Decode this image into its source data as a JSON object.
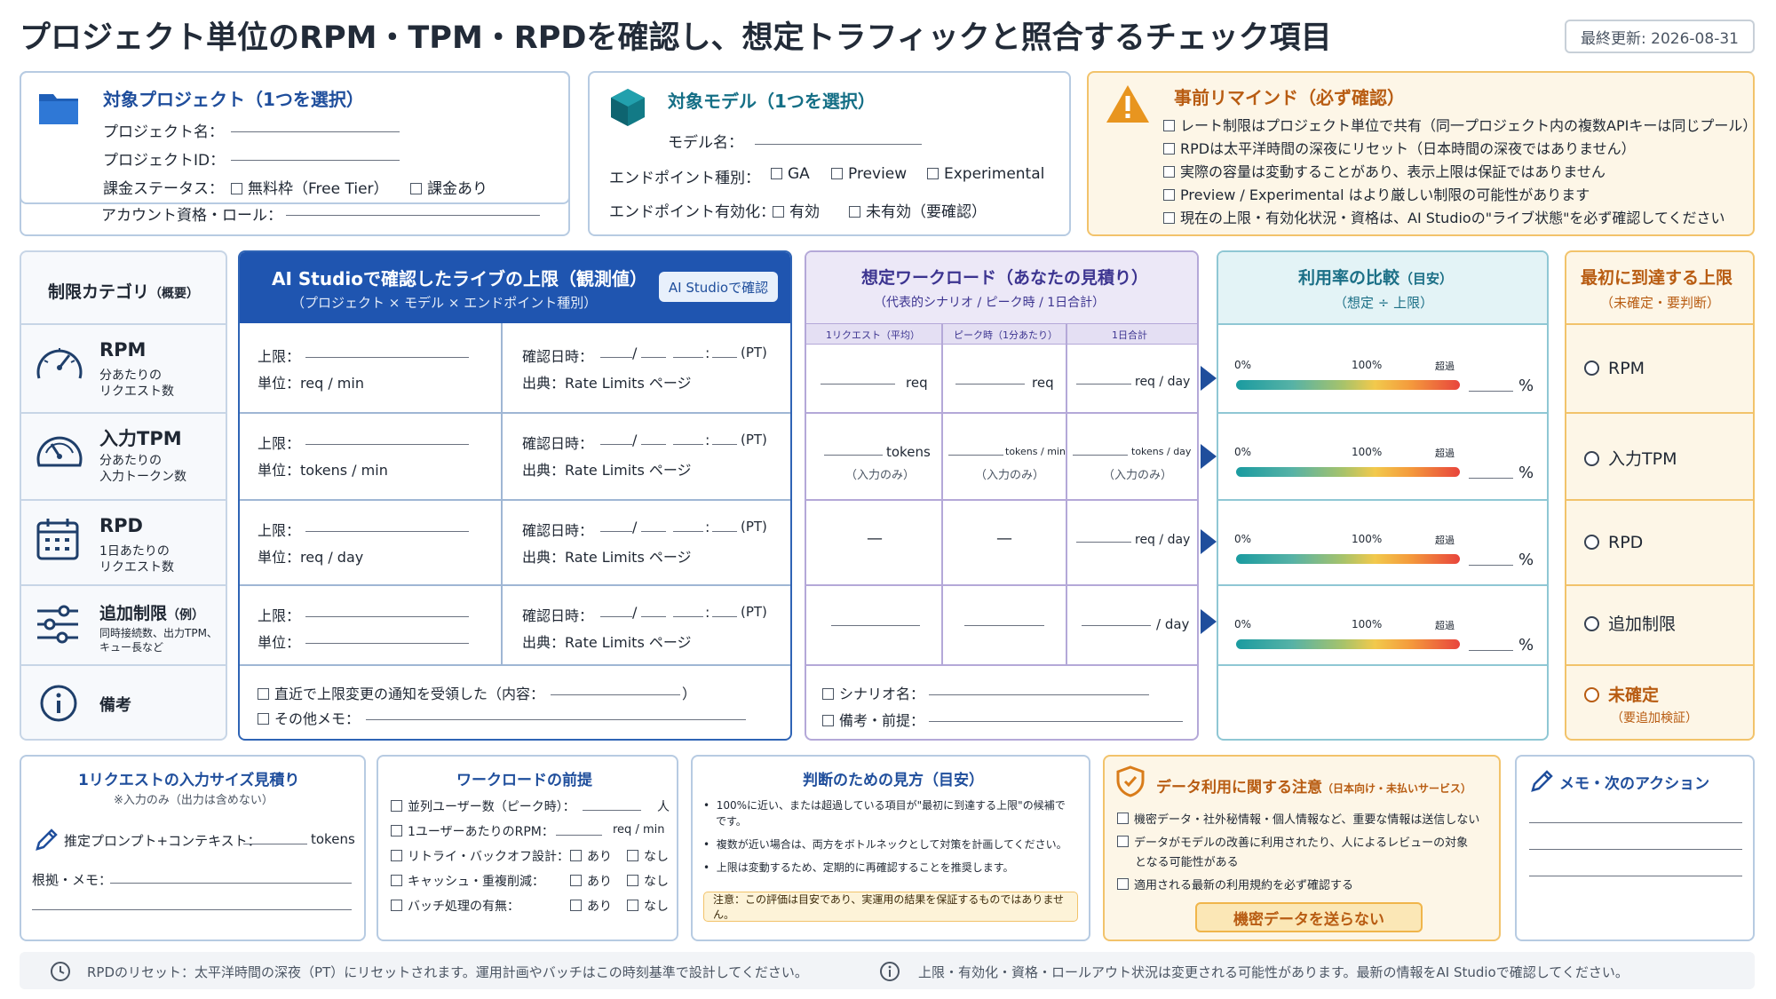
{
  "title": "プロジェクト単位のRPM・TPM・RPDを確認し、想定トラフィックと照合するチェック項目",
  "last_updated": "最終更新: 2026-08-31",
  "project": {
    "heading": "対象プロジェクト（1つを選択）",
    "name": "プロジェクト名：",
    "id": "プロジェクトID：",
    "billing": "課金ステータス：",
    "free": "無料枠（Free Tier）",
    "paid": "課金あり",
    "account": "アカウント資格・ロール："
  },
  "model": {
    "heading": "対象モデル（1つを選択）",
    "name": "モデル名：",
    "endpoint_type": "エンドポイント種別：",
    "ga": "GA",
    "preview": "Preview",
    "experimental": "Experimental",
    "enabled": "エンドポイント有効化：",
    "on": "有効",
    "off": "未有効（要確認）"
  },
  "reminder": {
    "heading": "事前リマインド（必ず確認）",
    "items": [
      "レート制限はプロジェクト単位で共有（同一プロジェクト内の複数APIキーは同じプール）",
      "RPDは太平洋時間の深夜にリセット（日本時間の深夜ではありません）",
      "実際の容量は変動することがあり、表示上限は保証ではありません",
      "Preview / Experimental はより厳しい制限の可能性があります",
      "現在の上限・有効化状況・資格は、AI Studioの\"ライブ状態\"を必ず確認してください"
    ]
  },
  "cat": {
    "header": "制限カテゴリ",
    "header_sub": "（概要）",
    "rows": [
      {
        "name": "RPM",
        "desc1": "分あたりの",
        "desc2": "リクエスト数"
      },
      {
        "name": "入力TPM",
        "desc1": "分あたりの",
        "desc2": "入力トークン数"
      },
      {
        "name": "RPD",
        "desc1": "1日あたりの",
        "desc2": "リクエスト数"
      },
      {
        "name": "追加制限",
        "suffix": "（例）",
        "desc1": "同時接続数、出力TPM、",
        "desc2": "キュー長など"
      }
    ],
    "note": "備考"
  },
  "live": {
    "header": "AI Studioで確認したライブの上限（観測値）",
    "header_sub": "（プロジェクト × モデル × エンドポイント種別）",
    "button": "AI Studioで確認",
    "limit": "上限：",
    "unit": "単位：",
    "units": [
      "req / min",
      "tokens / min",
      "req / day",
      ""
    ],
    "checked": "確認日時：",
    "pt": "(PT)",
    "source": "出典：Rate Limits ページ",
    "note1": "直近で上限変更の通知を受領した（内容：",
    "note1_end": "）",
    "note2": "その他メモ："
  },
  "workload": {
    "header": "想定ワークロード（あなたの見積り）",
    "header_sub": "（代表的シナリオ / ピーク時 / 1日合計）",
    "cols": [
      "1リクエスト（平均）",
      "ピーク時（1分あたり）",
      "1日合計"
    ],
    "r1": [
      "req",
      "req",
      "req / day"
    ],
    "r2": [
      "tokens",
      "tokens / min",
      "tokens / day"
    ],
    "input_only": "（入力のみ）",
    "dash": "—",
    "r3": "req / day",
    "r4": "/ day",
    "scenario": "シナリオ名：",
    "notes": "備考・前提："
  },
  "util": {
    "header": "利用率の比較",
    "header_suffix": "（目安）",
    "header_sub": "（想定 ÷ 上限）",
    "p0": "0%",
    "p100": "100%",
    "over": "超過",
    "pct": "%"
  },
  "first": {
    "header": "最初に到達する上限",
    "header_sub": "（未確定・要判断）",
    "options": [
      "RPM",
      "入力TPM",
      "RPD",
      "追加制限"
    ],
    "undecided": "未確定",
    "undecided_sub": "（要追加検証）"
  },
  "input_size": {
    "heading": "1リクエストの入力サイズ見積り",
    "sub": "※入力のみ（出力は含めない）",
    "prompt": "推定プロンプト+コンテキスト：",
    "tokens": "tokens",
    "basis": "根拠・メモ："
  },
  "premise": {
    "heading": "ワークロードの前提",
    "users": "並列ユーザー数（ピーク時）：",
    "people": "人",
    "rpm": "1ユーザーあたりのRPM：",
    "rpm_unit": "req / min",
    "retry": "リトライ・バックオフ設計：",
    "cache": "キャッシュ・重複削減：",
    "batch": "バッチ処理の有無：",
    "yes": "あり",
    "no": "なし"
  },
  "judge": {
    "heading": "判断のための見方（目安）",
    "b1a": "100%に近い、または超過している項目が\"最初に到達する上限\"の候補で",
    "b1b": "です。",
    "b2": "複数が近い場合は、両方をボトルネックとして対策を計画してください。",
    "b3": "上限は変動するため、定期的に再確認することを推奨します。",
    "caution": "注意：この評価は目安であり、実運用の結果を保証するものではありません。"
  },
  "data": {
    "heading": "データ利用に関する注意",
    "heading_sub": "（日本向け・未払いサービス）",
    "i1": "機密データ・社外秘情報・個人情報など、重要な情報は送信しない",
    "i2a": "データがモデルの改善に利用されたり、人によるレビューの対象",
    "i2b": "となる可能性がある",
    "i3": "適用される最新の利用規約を必ず確認する",
    "button": "機密データを送らない"
  },
  "memo": {
    "heading": "メモ・次のアクション"
  },
  "footer": {
    "left": "RPDのリセット：太平洋時間の深夜（PT）にリセットされます。運用計画やバッチはこの時刻基準で設計してください。",
    "right": "上限・有効化・資格・ロールアウト状況は変更される可能性があります。最新の情報をAI Studioで確認してください。"
  },
  "colors": {
    "primary": "#1f4e9c",
    "purple": "#ece8f7",
    "teal": "#e3f3f6",
    "amber": "#fbf1dc",
    "warn": "#f0a030"
  },
  "icons": [
    "folder-icon",
    "cube-icon",
    "warning-icon",
    "speedometer-icon",
    "gauge-icon",
    "calendar-icon",
    "sliders-icon",
    "info-icon",
    "pencil-icon",
    "shield-icon",
    "clock-icon"
  ]
}
